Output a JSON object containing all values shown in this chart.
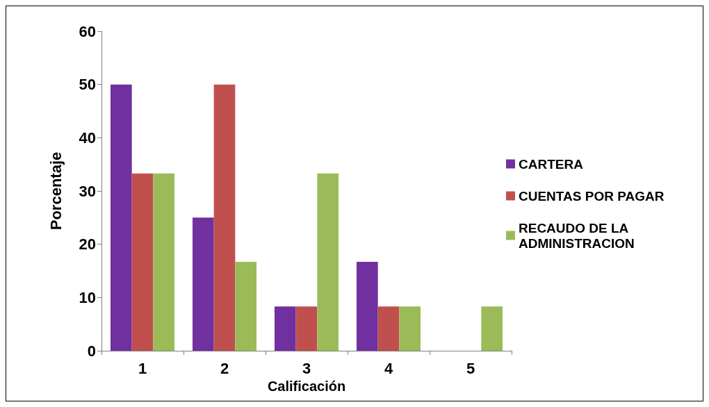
{
  "chart_data": {
    "type": "bar",
    "xlabel": "Calificación",
    "ylabel": "Porcentaje",
    "categories": [
      "1",
      "2",
      "3",
      "4",
      "5"
    ],
    "series": [
      {
        "name": "CARTERA",
        "color": "#7030a0",
        "values": [
          50,
          25,
          8.3,
          16.7,
          0
        ]
      },
      {
        "name": "CUENTAS POR PAGAR",
        "color": "#c0504d",
        "values": [
          33.3,
          50,
          8.3,
          8.3,
          0
        ]
      },
      {
        "name": "RECAUDO DE LA ADMINISTRACION",
        "color": "#9bbb59",
        "values": [
          33.3,
          16.7,
          33.3,
          8.3,
          8.3
        ]
      }
    ],
    "ylim": [
      0,
      60
    ],
    "yticks": [
      0,
      10,
      20,
      30,
      40,
      50,
      60
    ],
    "grid": false,
    "legend": "right"
  }
}
